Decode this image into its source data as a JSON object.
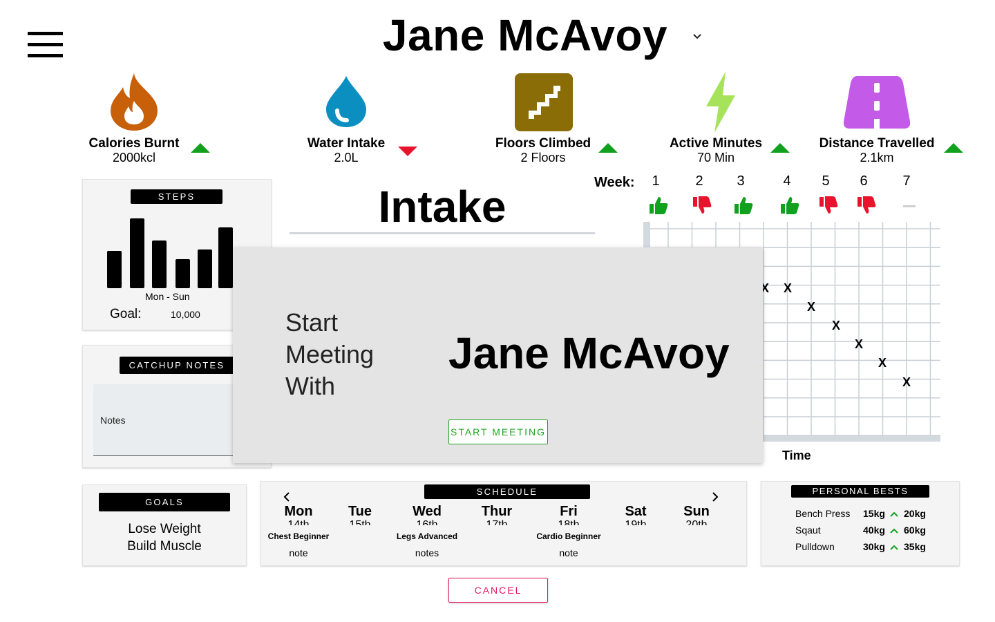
{
  "header": {
    "client_name": "Jane McAvoy"
  },
  "stats": [
    {
      "label": "Calories Burnt",
      "value": "2000kcl",
      "trend": "up",
      "icon": "flame-icon",
      "color": "#c8600a"
    },
    {
      "label": "Water Intake",
      "value": "2.0L",
      "trend": "down",
      "icon": "water-drop-icon",
      "color": "#0b8fc0"
    },
    {
      "label": "Floors Climbed",
      "value": "2 Floors",
      "trend": "up",
      "icon": "stairs-icon",
      "color": "#8a6d06"
    },
    {
      "label": "Active Minutes",
      "value": "70 Min",
      "trend": "up",
      "icon": "lightning-icon",
      "color": "#a6e35a"
    },
    {
      "label": "Distance Travelled",
      "value": "2.1km",
      "trend": "up",
      "icon": "road-icon",
      "color": "#c35ae8"
    }
  ],
  "steps": {
    "title": "STEPS",
    "range_label": "Mon - Sun",
    "goal_label": "Goal:",
    "goal_value": "10,000",
    "daily_levels": [
      0.53,
      1.0,
      0.68,
      0.42,
      0.55,
      0.87
    ]
  },
  "catchup": {
    "title": "CATCHUP NOTES",
    "notes_label": "Notes"
  },
  "intake": {
    "title": "Intake",
    "week_label": "Week:",
    "weeks": [
      {
        "num": "1",
        "rating": "up"
      },
      {
        "num": "2",
        "rating": "down"
      },
      {
        "num": "3",
        "rating": "up"
      },
      {
        "num": "4",
        "rating": "up"
      },
      {
        "num": "5",
        "rating": "down"
      },
      {
        "num": "6",
        "rating": "down"
      },
      {
        "num": "7",
        "rating": "none"
      }
    ],
    "x_axis_label": "Time",
    "marker": "X"
  },
  "modal": {
    "line1": "Start",
    "line2": "Meeting",
    "line3": "With",
    "client_name": "Jane McAvoy",
    "start_label": "START MEETING"
  },
  "goals": {
    "title": "GOALS",
    "items": [
      "Lose Weight",
      "Build Muscle"
    ]
  },
  "schedule": {
    "title": "SCHEDULE",
    "days": [
      {
        "name": "Mon",
        "date": "14th",
        "workout": "Chest Beginner",
        "note": "note"
      },
      {
        "name": "Tue",
        "date": "15th",
        "workout": "",
        "note": ""
      },
      {
        "name": "Wed",
        "date": "16th",
        "workout": "Legs Advanced",
        "note": "notes"
      },
      {
        "name": "Thur",
        "date": "17th",
        "workout": "",
        "note": ""
      },
      {
        "name": "Fri",
        "date": "18th",
        "workout": "Cardio Beginner",
        "note": "note"
      },
      {
        "name": "Sat",
        "date": "19th",
        "workout": "",
        "note": ""
      },
      {
        "name": "Sun",
        "date": "20th",
        "workout": "",
        "note": ""
      }
    ]
  },
  "personal_bests": {
    "title": "PERSONAL BESTS",
    "rows": [
      {
        "exercise": "Bench Press",
        "from": "15kg",
        "to": "20kg"
      },
      {
        "exercise": "Sqaut",
        "from": "40kg",
        "to": "60kg"
      },
      {
        "exercise": "Pulldown",
        "from": "30kg",
        "to": "35kg"
      }
    ]
  },
  "cancel_label": "CANCEL",
  "colors": {
    "up": "#12a01f",
    "down": "#e8142e",
    "grid": "#c8cfd6",
    "start": "#1ea51e",
    "cancel": "#e2185f"
  }
}
